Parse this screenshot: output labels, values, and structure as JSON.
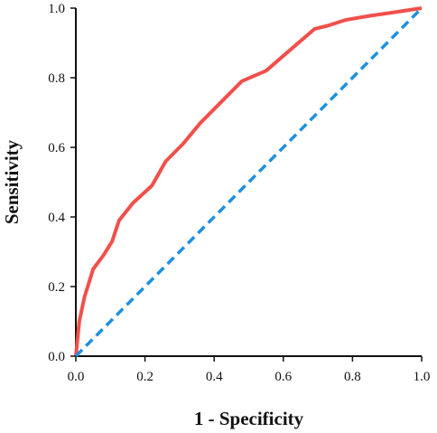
{
  "chart_data": {
    "type": "line",
    "title": "",
    "xlabel": "1 - Specificity",
    "ylabel": "Sensitivity",
    "xlim": [
      0.0,
      1.0
    ],
    "ylim": [
      0.0,
      1.0
    ],
    "x_ticks": [
      "0.0",
      "0.2",
      "0.4",
      "0.6",
      "0.8",
      "1.0"
    ],
    "y_ticks": [
      "0.0",
      "0.2",
      "0.4",
      "0.6",
      "0.8",
      "1.0"
    ],
    "grid": false,
    "legend": "none",
    "series": [
      {
        "color": "#f0504a",
        "style": "solid",
        "x": [
          0.0,
          0.01,
          0.025,
          0.05,
          0.08,
          0.105,
          0.125,
          0.165,
          0.22,
          0.26,
          0.31,
          0.36,
          0.42,
          0.48,
          0.55,
          0.62,
          0.69,
          0.73,
          0.78,
          0.85,
          0.92,
          1.0
        ],
        "y": [
          0.0,
          0.1,
          0.17,
          0.25,
          0.29,
          0.33,
          0.39,
          0.44,
          0.49,
          0.56,
          0.61,
          0.67,
          0.73,
          0.79,
          0.82,
          0.88,
          0.94,
          0.95,
          0.966,
          0.978,
          0.988,
          1.0
        ]
      },
      {
        "color": "#1e90e0",
        "style": "dashed",
        "x": [
          0.0,
          1.0
        ],
        "y": [
          0.0,
          1.0
        ]
      }
    ]
  }
}
